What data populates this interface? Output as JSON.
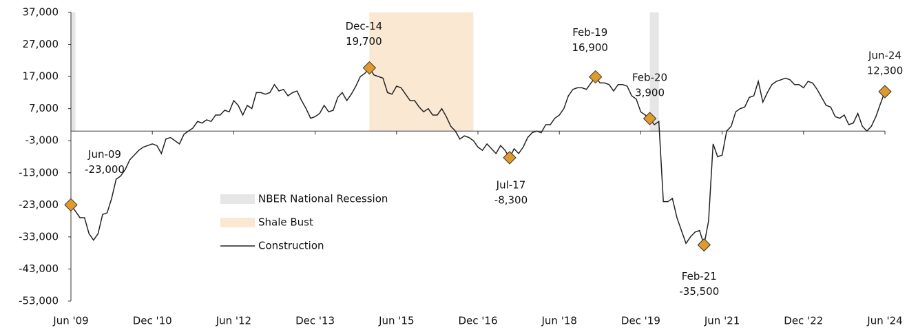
{
  "chart_data": {
    "type": "line",
    "categories": [
      "Jun '09",
      null,
      null,
      null,
      null,
      null,
      null,
      null,
      null,
      null,
      null,
      null,
      null,
      null,
      null,
      null,
      null,
      null,
      "Dec '10",
      null,
      null,
      null,
      null,
      null,
      null,
      null,
      null,
      null,
      null,
      null,
      null,
      null,
      null,
      null,
      null,
      null,
      "Jun '12",
      null,
      null,
      null,
      null,
      null,
      null,
      null,
      null,
      null,
      null,
      null,
      null,
      null,
      null,
      null,
      null,
      null,
      "Dec '13",
      null,
      null,
      null,
      null,
      null,
      null,
      null,
      null,
      null,
      null,
      null,
      null,
      null,
      null,
      null,
      null,
      null,
      "Jun '15",
      null,
      null,
      null,
      null,
      null,
      null,
      null,
      null,
      null,
      null,
      null,
      null,
      null,
      null,
      null,
      null,
      null,
      "Dec '16",
      null,
      null,
      null,
      null,
      null,
      null,
      null,
      null,
      null,
      null,
      null,
      null,
      null,
      null,
      null,
      null,
      null,
      "Jun '18",
      null,
      null,
      null,
      null,
      null,
      null,
      null,
      null,
      null,
      null,
      null,
      null,
      null,
      null,
      null,
      null,
      null,
      "Dec '19",
      null,
      null,
      null,
      null,
      null,
      null,
      null,
      null,
      null,
      null,
      null,
      null,
      null,
      null,
      null,
      null,
      null,
      "Jun '21",
      null,
      null,
      null,
      null,
      null,
      null,
      null,
      null,
      null,
      null,
      null,
      null,
      null,
      null,
      null,
      null,
      null,
      "Dec '22",
      null,
      null,
      null,
      null,
      null,
      null,
      null,
      null,
      null,
      null,
      null,
      null,
      null,
      null,
      null,
      null,
      null,
      "Jun '24"
    ],
    "series": [
      {
        "name": "Construction",
        "color": "#222222",
        "values": [
          -23000,
          -25000,
          -27000,
          -27000,
          -32000,
          -34000,
          -32000,
          -26000,
          -25500,
          -21000,
          -15000,
          -14000,
          -12000,
          -9000,
          -7500,
          -6000,
          -5000,
          -4500,
          -4000,
          -4500,
          -7000,
          -2500,
          -2000,
          -3000,
          -4000,
          -1000,
          0,
          1000,
          3000,
          2500,
          3500,
          3000,
          5000,
          5000,
          6500,
          6000,
          9500,
          8000,
          5000,
          8000,
          7000,
          12000,
          12000,
          11500,
          12000,
          14500,
          12500,
          13000,
          11000,
          12000,
          12500,
          9500,
          7000,
          4000,
          4500,
          5500,
          8000,
          6000,
          6500,
          10500,
          12000,
          9500,
          11500,
          14000,
          17000,
          18000,
          19700,
          17500,
          17000,
          16500,
          12000,
          11500,
          14000,
          13500,
          11500,
          9500,
          9500,
          7500,
          6000,
          7000,
          5000,
          5000,
          7000,
          4500,
          1500,
          0,
          -2500,
          -1500,
          -2000,
          -3000,
          -5000,
          -6000,
          -4000,
          -5500,
          -7000,
          -4500,
          -6000,
          -8300,
          -5500,
          -7000,
          -5000,
          -2000,
          -500,
          0,
          -500,
          2000,
          2000,
          4000,
          5000,
          7000,
          11000,
          13000,
          13500,
          13500,
          13000,
          15000,
          16900,
          15000,
          15000,
          14500,
          12500,
          14500,
          14500,
          14000,
          11000,
          10000,
          6000,
          5000,
          3900,
          2000,
          3000,
          -22000,
          -22000,
          -21000,
          -27000,
          -31000,
          -35000,
          -33000,
          -31500,
          -31000,
          -35500,
          -28000,
          -4000,
          -8000,
          -7500,
          0,
          1500,
          6000,
          7000,
          7500,
          10500,
          11000,
          15500,
          9000,
          12000,
          14500,
          15500,
          16000,
          16500,
          16000,
          14500,
          14500,
          13500,
          15500,
          15000,
          13000,
          10500,
          8000,
          7500,
          4500,
          4000,
          5000,
          2000,
          2500,
          5500,
          1500,
          0,
          1500,
          4500,
          8500,
          12300
        ]
      }
    ],
    "bands": [
      {
        "name": "NBER National Recession",
        "color": "#e6e6e6",
        "periods": [
          [
            0,
            1
          ],
          [
            128,
            130
          ]
        ]
      },
      {
        "name": "Shale Bust",
        "color": "#fae8d2",
        "periods": [
          [
            66,
            89
          ]
        ]
      }
    ],
    "annotations": [
      {
        "x": 0,
        "date": "Jun-09",
        "value": -23000,
        "value_label": "-23,000"
      },
      {
        "x": 66,
        "date": "Dec-14",
        "value": 19700,
        "value_label": "19,700"
      },
      {
        "x": 97,
        "date": "Jul-17",
        "value": -8300,
        "value_label": "-8,300"
      },
      {
        "x": 116,
        "date": "Feb-19",
        "value": 16900,
        "value_label": "16,900"
      },
      {
        "x": 128,
        "date": "Feb-20",
        "value": 3900,
        "value_label": "3,900"
      },
      {
        "x": 140,
        "date": "Feb-21",
        "value": -35500,
        "value_label": "-35,500"
      },
      {
        "x": 180,
        "date": "Jun-24",
        "value": 12300,
        "value_label": "12,300"
      }
    ],
    "marker_color": "#e09a2b",
    "ylim": [
      -53000,
      37000
    ],
    "yticks": [
      {
        "value": 37000,
        "label": "37,000"
      },
      {
        "value": 27000,
        "label": "27,000"
      },
      {
        "value": 17000,
        "label": "17,000"
      },
      {
        "value": 7000,
        "label": "7,000"
      },
      {
        "value": -3000,
        "label": "-3,000"
      },
      {
        "value": -13000,
        "label": "-13,000"
      },
      {
        "value": -23000,
        "label": "-23,000"
      },
      {
        "value": -33000,
        "label": "-33,000"
      },
      {
        "value": -43000,
        "label": "-43,000"
      },
      {
        "value": -53000,
        "label": "-53,000"
      }
    ],
    "grid": false
  }
}
